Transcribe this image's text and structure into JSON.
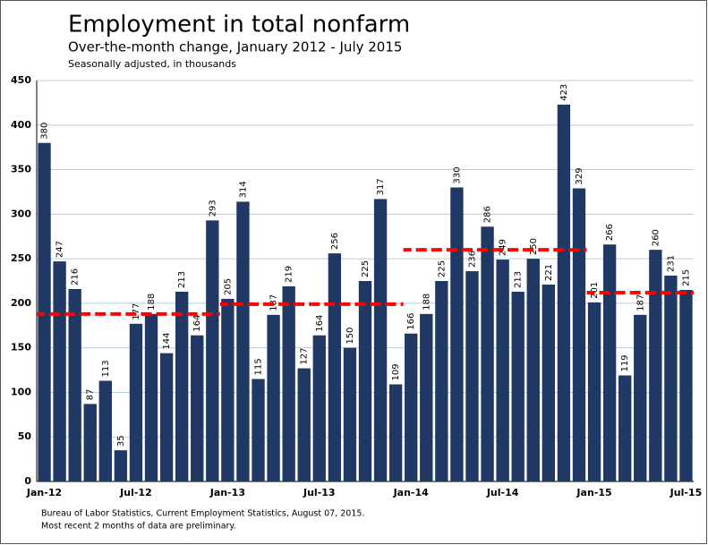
{
  "chart_data": {
    "type": "bar",
    "title": "Employment in total nonfarm",
    "subtitle": "Over-the-month change, January 2012 - July 2015",
    "note": "Seasonally adjusted, in thousands",
    "footnotes": [
      "Bureau of Labor Statistics, Current Employment Statistics, August 07, 2015.",
      "Most recent 2 months of data are preliminary."
    ],
    "categories": [
      "Jan-12",
      null,
      null,
      null,
      null,
      null,
      "Jul-12",
      null,
      null,
      null,
      null,
      null,
      "Jan-13",
      null,
      null,
      null,
      null,
      null,
      "Jul-13",
      null,
      null,
      null,
      null,
      null,
      "Jan-14",
      null,
      null,
      null,
      null,
      null,
      "Jul-14",
      null,
      null,
      null,
      null,
      null,
      "Jan-15",
      null,
      null,
      null,
      null,
      null,
      "Jul-15"
    ],
    "values": [
      380,
      247,
      216,
      87,
      113,
      35,
      177,
      188,
      144,
      213,
      164,
      293,
      205,
      314,
      115,
      187,
      219,
      127,
      164,
      256,
      150,
      225,
      317,
      109,
      166,
      188,
      225,
      330,
      236,
      286,
      249,
      213,
      250,
      221,
      423,
      329,
      201,
      266,
      119,
      187,
      260,
      231,
      215
    ],
    "color": "#203864",
    "average_values": [
      188,
      188,
      188,
      188,
      188,
      188,
      188,
      188,
      188,
      188,
      188,
      188,
      199,
      199,
      199,
      199,
      199,
      199,
      199,
      199,
      199,
      199,
      199,
      199,
      260,
      260,
      260,
      260,
      260,
      260,
      260,
      260,
      260,
      260,
      260,
      260,
      212,
      212,
      212,
      212,
      212,
      212,
      212
    ],
    "average_color": "#ff0000",
    "ylim": [
      0,
      450
    ],
    "yticks": [
      0,
      50,
      100,
      150,
      200,
      250,
      300,
      350,
      400,
      450
    ],
    "grid": true
  }
}
